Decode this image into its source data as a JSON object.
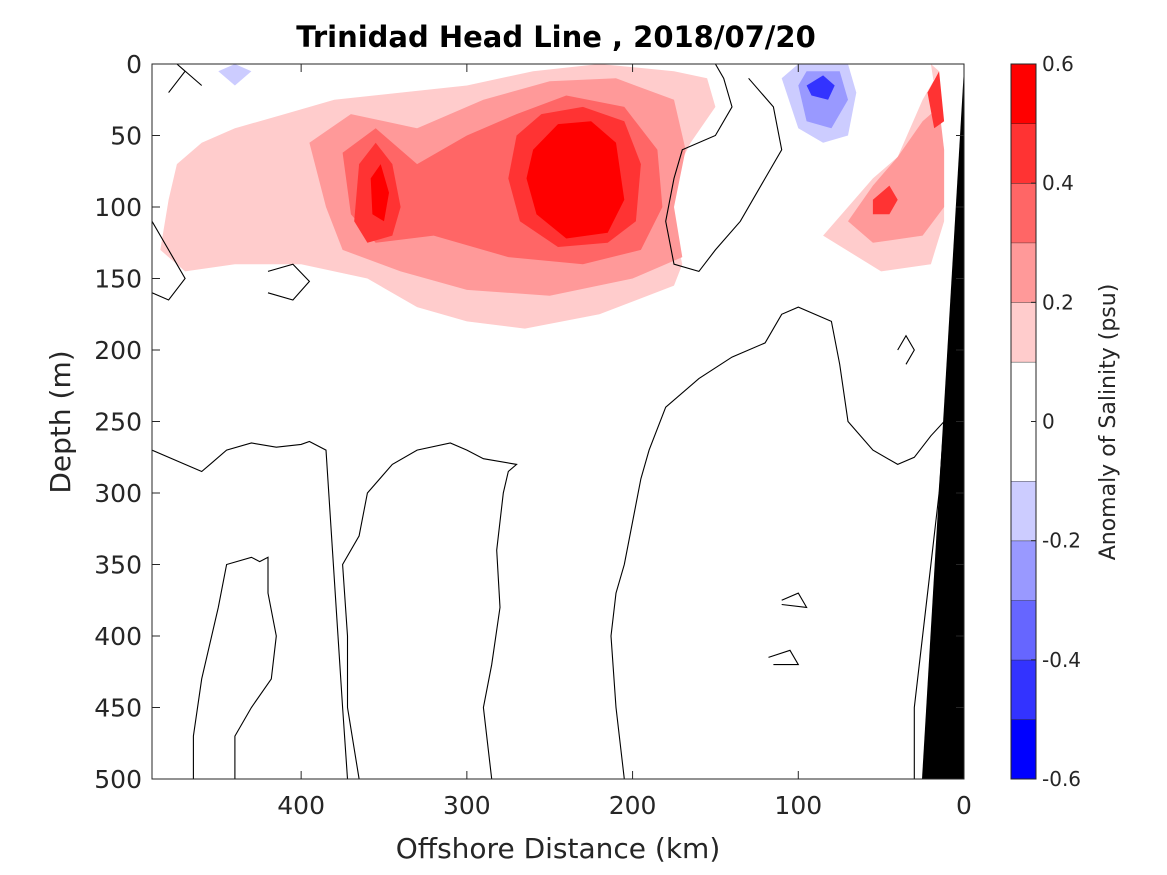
{
  "chart_data": {
    "type": "heatmap",
    "title": "Trinidad Head Line , 2018/07/20",
    "xlabel": "Offshore Distance (km)",
    "ylabel": "Depth (m)",
    "xlim": [
      490,
      0
    ],
    "ylim": [
      0,
      500
    ],
    "x_reversed": true,
    "y_reversed": true,
    "x_ticks": [
      400,
      300,
      200,
      100,
      0
    ],
    "y_ticks": [
      0,
      50,
      100,
      150,
      200,
      250,
      300,
      350,
      400,
      450,
      500
    ],
    "colorbar": {
      "label": "Anomaly of Salinity (psu)",
      "range": [
        -0.6,
        0.6
      ],
      "ticks": [
        -0.6,
        -0.4,
        -0.2,
        0,
        0.2,
        0.4,
        0.6
      ],
      "tick_labels": [
        "-0.6",
        "-0.4",
        "-0.2",
        "0",
        "0.2",
        "0.4",
        "0.6"
      ],
      "levels": [
        {
          "min": -0.6,
          "max": -0.5,
          "color": "#0000ff"
        },
        {
          "min": -0.5,
          "max": -0.4,
          "color": "#3333ff"
        },
        {
          "min": -0.4,
          "max": -0.3,
          "color": "#6666ff"
        },
        {
          "min": -0.3,
          "max": -0.2,
          "color": "#9999ff"
        },
        {
          "min": -0.2,
          "max": -0.1,
          "color": "#ccccff"
        },
        {
          "min": -0.1,
          "max": 0.1,
          "color": "#ffffff"
        },
        {
          "min": 0.1,
          "max": 0.2,
          "color": "#ffcccc"
        },
        {
          "min": 0.2,
          "max": 0.3,
          "color": "#ff9999"
        },
        {
          "min": 0.3,
          "max": 0.4,
          "color": "#ff6666"
        },
        {
          "min": 0.4,
          "max": 0.5,
          "color": "#ff3333"
        },
        {
          "min": 0.5,
          "max": 0.6,
          "color": "#ff0000"
        }
      ]
    },
    "anomaly_features": [
      {
        "name": "upper positive lobe (core near 230 km)",
        "level": 0.1,
        "polygon": [
          [
            460,
            55
          ],
          [
            440,
            45
          ],
          [
            410,
            35
          ],
          [
            380,
            25
          ],
          [
            340,
            20
          ],
          [
            300,
            15
          ],
          [
            260,
            5
          ],
          [
            220,
            0
          ],
          [
            175,
            5
          ],
          [
            155,
            10
          ],
          [
            150,
            30
          ],
          [
            165,
            55
          ],
          [
            180,
            90
          ],
          [
            170,
            140
          ],
          [
            175,
            155
          ],
          [
            220,
            175
          ],
          [
            265,
            185
          ],
          [
            300,
            180
          ],
          [
            330,
            170
          ],
          [
            360,
            150
          ],
          [
            400,
            140
          ],
          [
            440,
            140
          ],
          [
            470,
            145
          ],
          [
            485,
            130
          ],
          [
            480,
            95
          ],
          [
            475,
            70
          ]
        ]
      },
      {
        "name": "mid-depth positive band",
        "level": 0.2,
        "polygon": [
          [
            395,
            55
          ],
          [
            370,
            35
          ],
          [
            330,
            45
          ],
          [
            290,
            25
          ],
          [
            250,
            12
          ],
          [
            210,
            10
          ],
          [
            175,
            25
          ],
          [
            168,
            60
          ],
          [
            175,
            100
          ],
          [
            170,
            135
          ],
          [
            200,
            150
          ],
          [
            250,
            162
          ],
          [
            300,
            158
          ],
          [
            340,
            145
          ],
          [
            375,
            130
          ],
          [
            385,
            100
          ]
        ]
      },
      {
        "name": "mid-depth positive band",
        "level": 0.3,
        "polygon": [
          [
            375,
            62
          ],
          [
            355,
            45
          ],
          [
            330,
            70
          ],
          [
            300,
            50
          ],
          [
            270,
            35
          ],
          [
            240,
            22
          ],
          [
            205,
            30
          ],
          [
            185,
            60
          ],
          [
            182,
            100
          ],
          [
            195,
            130
          ],
          [
            230,
            140
          ],
          [
            275,
            135
          ],
          [
            320,
            120
          ],
          [
            355,
            125
          ],
          [
            370,
            105
          ]
        ]
      },
      {
        "name": "western positive core",
        "level": 0.4,
        "polygon": [
          [
            365,
            70
          ],
          [
            355,
            55
          ],
          [
            345,
            70
          ],
          [
            340,
            100
          ],
          [
            345,
            120
          ],
          [
            360,
            125
          ],
          [
            368,
            110
          ]
        ]
      },
      {
        "name": "western positive core",
        "level": 0.5,
        "polygon": [
          [
            358,
            80
          ],
          [
            352,
            70
          ],
          [
            347,
            90
          ],
          [
            350,
            110
          ],
          [
            357,
            105
          ]
        ]
      },
      {
        "name": "central positive core",
        "level": 0.4,
        "polygon": [
          [
            270,
            50
          ],
          [
            255,
            35
          ],
          [
            230,
            30
          ],
          [
            205,
            40
          ],
          [
            195,
            70
          ],
          [
            198,
            110
          ],
          [
            215,
            125
          ],
          [
            245,
            128
          ],
          [
            268,
            110
          ],
          [
            275,
            80
          ]
        ]
      },
      {
        "name": "central positive core",
        "level": 0.5,
        "polygon": [
          [
            260,
            60
          ],
          [
            245,
            42
          ],
          [
            225,
            40
          ],
          [
            210,
            55
          ],
          [
            205,
            95
          ],
          [
            215,
            118
          ],
          [
            240,
            122
          ],
          [
            258,
            105
          ],
          [
            264,
            80
          ]
        ]
      },
      {
        "name": "nearshore positive lobe",
        "level": 0.1,
        "polygon": [
          [
            85,
            120
          ],
          [
            70,
            100
          ],
          [
            55,
            80
          ],
          [
            40,
            65
          ],
          [
            25,
            25
          ],
          [
            15,
            5
          ],
          [
            20,
            0
          ],
          [
            12,
            60
          ],
          [
            12,
            110
          ],
          [
            20,
            140
          ],
          [
            50,
            145
          ]
        ]
      },
      {
        "name": "nearshore positive lobe",
        "level": 0.2,
        "polygon": [
          [
            70,
            110
          ],
          [
            55,
            85
          ],
          [
            40,
            65
          ],
          [
            25,
            40
          ],
          [
            15,
            30
          ],
          [
            12,
            60
          ],
          [
            12,
            100
          ],
          [
            25,
            120
          ],
          [
            55,
            125
          ]
        ]
      },
      {
        "name": "nearshore positive core",
        "level": 0.4,
        "polygon": [
          [
            55,
            95
          ],
          [
            45,
            85
          ],
          [
            40,
            95
          ],
          [
            45,
            105
          ],
          [
            55,
            105
          ]
        ]
      },
      {
        "name": "nearshore surface core",
        "level": 0.4,
        "polygon": [
          [
            22,
            20
          ],
          [
            15,
            5
          ],
          [
            12,
            40
          ],
          [
            18,
            45
          ]
        ]
      },
      {
        "name": "offshore negative patch",
        "level": -0.2,
        "polygon": [
          [
            110,
            10
          ],
          [
            100,
            0
          ],
          [
            70,
            0
          ],
          [
            65,
            20
          ],
          [
            70,
            50
          ],
          [
            85,
            55
          ],
          [
            100,
            45
          ]
        ]
      },
      {
        "name": "offshore negative patch",
        "level": -0.3,
        "polygon": [
          [
            100,
            15
          ],
          [
            95,
            5
          ],
          [
            75,
            5
          ],
          [
            70,
            25
          ],
          [
            80,
            45
          ],
          [
            95,
            40
          ]
        ]
      },
      {
        "name": "offshore negative core",
        "level": -0.5,
        "polygon": [
          [
            95,
            15
          ],
          [
            85,
            8
          ],
          [
            78,
            15
          ],
          [
            82,
            25
          ],
          [
            92,
            22
          ]
        ]
      },
      {
        "name": "small negative patch",
        "level": -0.2,
        "polygon": [
          [
            450,
            5
          ],
          [
            440,
            0
          ],
          [
            430,
            5
          ],
          [
            440,
            15
          ]
        ]
      }
    ],
    "zero_contours": [
      [
        [
          490,
          270
        ],
        [
          470,
          280
        ],
        [
          460,
          285
        ],
        [
          455,
          280
        ],
        [
          445,
          270
        ],
        [
          430,
          265
        ],
        [
          415,
          268
        ],
        [
          400,
          266
        ],
        [
          395,
          264
        ],
        [
          385,
          270
        ],
        [
          375,
          450
        ],
        [
          372,
          500
        ]
      ],
      [
        [
          465,
          500
        ],
        [
          465,
          470
        ],
        [
          460,
          430
        ],
        [
          450,
          380
        ],
        [
          445,
          350
        ],
        [
          430,
          345
        ],
        [
          425,
          348
        ],
        [
          420,
          345
        ],
        [
          420,
          370
        ],
        [
          415,
          400
        ],
        [
          418,
          430
        ],
        [
          430,
          450
        ],
        [
          440,
          470
        ],
        [
          440,
          500
        ]
      ],
      [
        [
          285,
          500
        ],
        [
          290,
          450
        ],
        [
          285,
          420
        ],
        [
          280,
          380
        ],
        [
          282,
          340
        ],
        [
          278,
          300
        ],
        [
          275,
          285
        ],
        [
          270,
          280
        ],
        [
          290,
          276
        ],
        [
          300,
          270
        ],
        [
          310,
          265
        ],
        [
          330,
          270
        ],
        [
          345,
          280
        ],
        [
          360,
          300
        ],
        [
          365,
          330
        ],
        [
          375,
          350
        ],
        [
          372,
          400
        ],
        [
          372,
          450
        ],
        [
          365,
          500
        ]
      ],
      [
        [
          205,
          500
        ],
        [
          210,
          450
        ],
        [
          213,
          400
        ],
        [
          210,
          370
        ],
        [
          205,
          350
        ],
        [
          200,
          320
        ],
        [
          195,
          290
        ],
        [
          190,
          270
        ],
        [
          180,
          240
        ],
        [
          160,
          220
        ],
        [
          140,
          205
        ],
        [
          120,
          195
        ],
        [
          110,
          175
        ],
        [
          100,
          170
        ],
        [
          80,
          180
        ],
        [
          75,
          210
        ],
        [
          70,
          250
        ],
        [
          55,
          270
        ],
        [
          40,
          280
        ],
        [
          30,
          275
        ],
        [
          20,
          260
        ],
        [
          12,
          250
        ],
        [
          15,
          300
        ],
        [
          20,
          350
        ],
        [
          25,
          400
        ],
        [
          30,
          450
        ],
        [
          30,
          500
        ]
      ],
      [
        [
          490,
          110
        ],
        [
          480,
          130
        ],
        [
          470,
          150
        ],
        [
          480,
          165
        ],
        [
          490,
          160
        ]
      ],
      [
        [
          480,
          20
        ],
        [
          470,
          5
        ],
        [
          475,
          0
        ],
        [
          460,
          15
        ]
      ],
      [
        [
          420,
          145
        ],
        [
          405,
          140
        ],
        [
          395,
          152
        ],
        [
          405,
          165
        ],
        [
          420,
          160
        ]
      ],
      [
        [
          40,
          200
        ],
        [
          35,
          190
        ],
        [
          30,
          200
        ],
        [
          35,
          210
        ]
      ],
      [
        [
          110,
          375
        ],
        [
          100,
          370
        ],
        [
          95,
          380
        ],
        [
          110,
          378
        ]
      ],
      [
        [
          118,
          415
        ],
        [
          105,
          410
        ],
        [
          100,
          420
        ],
        [
          115,
          420
        ]
      ],
      [
        [
          130,
          10
        ],
        [
          115,
          30
        ],
        [
          110,
          60
        ],
        [
          120,
          80
        ],
        [
          135,
          110
        ],
        [
          150,
          130
        ],
        [
          160,
          145
        ],
        [
          175,
          140
        ],
        [
          180,
          110
        ],
        [
          175,
          80
        ],
        [
          170,
          60
        ],
        [
          150,
          50
        ],
        [
          140,
          30
        ],
        [
          145,
          10
        ],
        [
          150,
          0
        ]
      ]
    ]
  }
}
